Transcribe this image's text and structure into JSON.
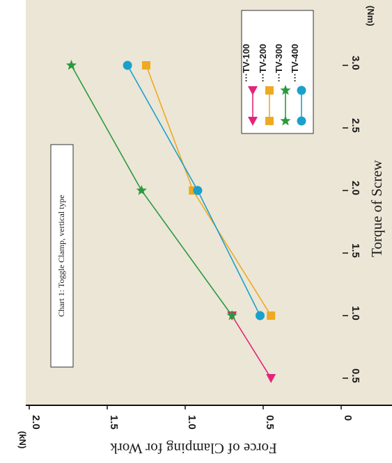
{
  "chart_data": {
    "type": "line",
    "title": "Chart 1: Toggle Clamp, vertical type",
    "xlabel": "Torque of Screw",
    "ylabel": "Force of Clamping for Work",
    "x_unit": "(Nm)",
    "y_unit": "(kN)",
    "xlim": [
      0.3,
      3.3
    ],
    "ylim": [
      0,
      2.0
    ],
    "x_ticks": [
      "0.5",
      "1.0",
      "1.5",
      "2.0",
      "2.5",
      "3.0"
    ],
    "y_ticks": [
      "0",
      "0.5",
      "1.0",
      "1.5",
      "2.0"
    ],
    "x_tick_values": [
      0.5,
      1.0,
      1.5,
      2.0,
      2.5,
      3.0
    ],
    "y_tick_values": [
      0,
      0.5,
      1.0,
      1.5,
      2.0
    ],
    "grid": false,
    "legend_position": "top-right",
    "series": [
      {
        "name": "TV-100",
        "color": "#e0267a",
        "marker": "triangle",
        "x": [
          0.5,
          1.0
        ],
        "y": [
          0.45,
          0.7
        ]
      },
      {
        "name": "TV-200",
        "color": "#eeaa22",
        "marker": "square",
        "x": [
          1.0,
          2.0,
          3.0
        ],
        "y": [
          0.45,
          0.95,
          1.25
        ]
      },
      {
        "name": "TV-300",
        "color": "#2a9a3e",
        "marker": "star",
        "x": [
          1.0,
          2.0,
          3.0
        ],
        "y": [
          0.7,
          1.28,
          1.73
        ]
      },
      {
        "name": "TV-400",
        "color": "#1ba0cc",
        "marker": "circle",
        "x": [
          1.0,
          2.0,
          3.0
        ],
        "y": [
          0.52,
          0.92,
          1.37
        ]
      }
    ]
  },
  "legend_prefix": "···",
  "colors": {
    "plot_background": "#ece6d6",
    "page_background": "#ffffff",
    "axis": "#111111"
  }
}
